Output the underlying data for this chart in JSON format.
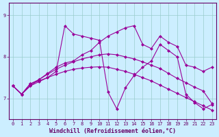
{
  "xlabel": "Windchill (Refroidissement éolien,°C)",
  "bg_color": "#cceeff",
  "line_color": "#990099",
  "grid_color": "#99cccc",
  "axis_color": "#660066",
  "xlim": [
    -0.5,
    23.5
  ],
  "ylim": [
    6.5,
    9.3
  ],
  "yticks": [
    7,
    8,
    9
  ],
  "xticks": [
    0,
    1,
    2,
    3,
    4,
    5,
    6,
    7,
    8,
    9,
    10,
    11,
    12,
    13,
    14,
    15,
    16,
    17,
    18,
    19,
    20,
    21,
    22,
    23
  ],
  "series": [
    [
      7.3,
      7.1,
      7.3,
      7.4,
      7.5,
      7.65,
      8.75,
      8.55,
      8.5,
      8.45,
      8.4,
      7.15,
      6.75,
      7.25,
      7.55,
      7.75,
      7.9,
      8.3,
      8.15,
      8.0,
      7.1,
      6.9,
      6.75,
      6.85
    ],
    [
      7.3,
      7.1,
      7.3,
      7.45,
      7.6,
      7.75,
      7.85,
      7.9,
      8.05,
      8.15,
      8.35,
      8.5,
      8.6,
      8.7,
      8.75,
      8.3,
      8.2,
      8.5,
      8.35,
      8.25,
      7.8,
      7.75,
      7.65,
      7.75
    ],
    [
      7.3,
      7.1,
      7.35,
      7.45,
      7.58,
      7.7,
      7.8,
      7.88,
      7.95,
      8.0,
      8.05,
      8.07,
      8.05,
      8.0,
      7.95,
      7.88,
      7.8,
      7.72,
      7.6,
      7.48,
      7.38,
      7.27,
      7.18,
      6.88
    ],
    [
      7.3,
      7.1,
      7.35,
      7.42,
      7.5,
      7.58,
      7.65,
      7.7,
      7.73,
      7.75,
      7.76,
      7.75,
      7.7,
      7.65,
      7.58,
      7.5,
      7.42,
      7.32,
      7.22,
      7.12,
      7.02,
      6.92,
      6.82,
      6.72
    ]
  ],
  "marker": "D",
  "markersize": 2.0,
  "linewidth": 0.8,
  "tick_fontsize": 5.0,
  "label_fontsize": 6.0
}
